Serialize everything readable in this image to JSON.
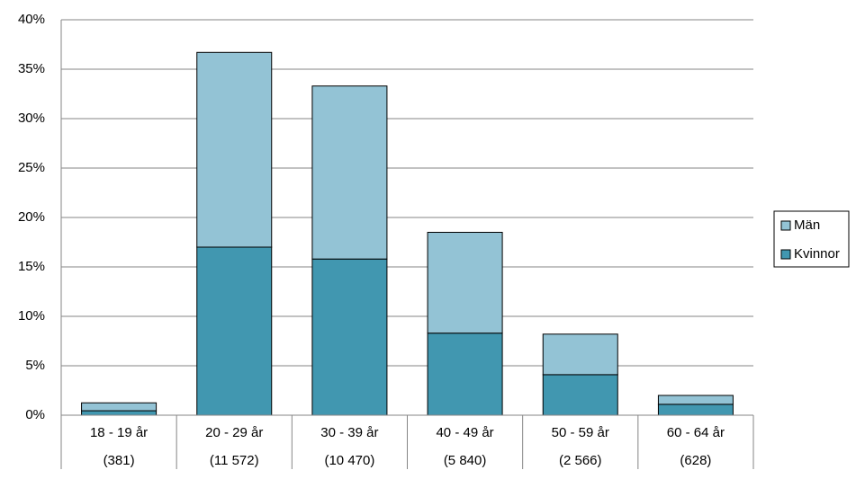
{
  "chart_data": {
    "type": "stacked-bar",
    "categories": [
      "18 - 19 år",
      "20 - 29 år",
      "30 - 39 år",
      "40 - 49 år",
      "50 - 59 år",
      "60 - 64 år"
    ],
    "category_counts": [
      "(381)",
      "(11 572)",
      "(10 470)",
      "(5 840)",
      "(2 566)",
      "(628)"
    ],
    "series": [
      {
        "name": "Kvinnor",
        "color": "#4197b0",
        "values": [
          0.45,
          17.0,
          15.8,
          8.3,
          4.1,
          1.1
        ]
      },
      {
        "name": "Män",
        "color": "#93c3d5",
        "values": [
          0.8,
          19.7,
          17.5,
          10.2,
          4.1,
          0.9
        ]
      }
    ],
    "ylim": [
      0,
      40
    ],
    "yticks": [
      {
        "value": 0,
        "label": "0%"
      },
      {
        "value": 5,
        "label": "5%"
      },
      {
        "value": 10,
        "label": "10%"
      },
      {
        "value": 15,
        "label": "15%"
      },
      {
        "value": 20,
        "label": "20%"
      },
      {
        "value": 25,
        "label": "25%"
      },
      {
        "value": 30,
        "label": "30%"
      },
      {
        "value": 35,
        "label": "35%"
      },
      {
        "value": 40,
        "label": "40%"
      }
    ],
    "grid": true,
    "legend": "right"
  }
}
